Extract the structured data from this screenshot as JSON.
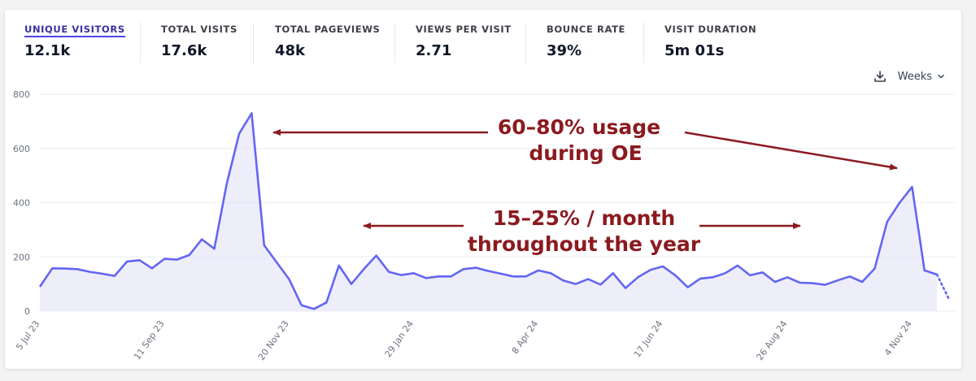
{
  "metrics": [
    {
      "label": "UNIQUE VISITORS",
      "value": "12.1k",
      "active": true
    },
    {
      "label": "TOTAL VISITS",
      "value": "17.6k",
      "active": false
    },
    {
      "label": "TOTAL PAGEVIEWS",
      "value": "48k",
      "active": false
    },
    {
      "label": "VIEWS PER VISIT",
      "value": "2.71",
      "active": false
    },
    {
      "label": "BOUNCE RATE",
      "value": "39%",
      "active": false
    },
    {
      "label": "VISIT DURATION",
      "value": "5m 01s",
      "active": false
    }
  ],
  "controls": {
    "download_icon": "download-icon",
    "period_label": "Weeks",
    "period_icon": "chevron-down-icon"
  },
  "colors": {
    "line": "#6366f1",
    "area": "#e0e0f8",
    "annotation": "#8b1a1f",
    "accent": "#4f46e5"
  },
  "chart_data": {
    "type": "line",
    "x_tick_labels": [
      "5 Jul 23",
      "11 Sep 23",
      "20 Nov 23",
      "29 Jan 24",
      "8 Apr 24",
      "17 Jun 24",
      "26 Aug 24",
      "4 Nov 24"
    ],
    "y_ticks": [
      0,
      200,
      400,
      600,
      800
    ],
    "ylim": [
      0,
      800
    ],
    "grid": true,
    "series": [
      {
        "values": [
          90,
          158,
          157,
          155,
          145,
          138,
          130,
          183,
          188,
          158,
          193,
          190,
          207,
          265,
          230,
          470,
          655,
          730,
          243,
          180,
          118,
          22,
          8,
          32,
          168,
          100,
          155,
          205,
          145,
          133,
          140,
          122,
          128,
          128,
          155,
          160,
          148,
          138,
          128,
          128,
          150,
          140,
          113,
          100,
          118,
          98,
          140,
          85,
          125,
          152,
          165,
          132,
          88,
          120,
          125,
          140,
          168,
          132,
          143,
          108,
          125,
          105,
          103,
          97,
          113,
          128,
          108,
          157,
          330,
          400,
          458,
          150,
          135
        ],
        "partial_values": [
          135,
          40
        ]
      }
    ]
  },
  "annotations": {
    "oe_line1": "60–80% usage",
    "oe_line2": "during OE",
    "year_line1": "15–25% / month",
    "year_line2": "throughout the year"
  }
}
